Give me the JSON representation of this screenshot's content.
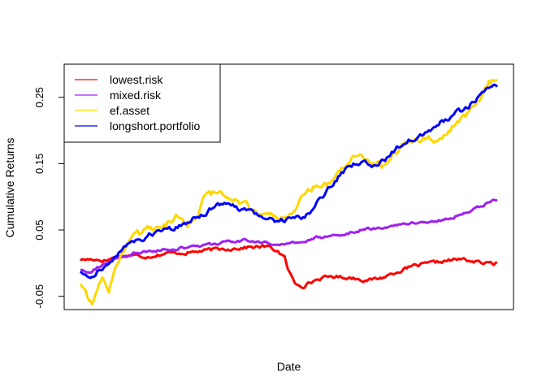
{
  "chart_data": {
    "type": "line",
    "title": "",
    "xlabel": "Date",
    "ylabel": "Cumulative Returns",
    "ylim": [
      -0.07,
      0.3
    ],
    "yticks": [
      -0.05,
      0.05,
      0.15,
      0.25
    ],
    "ytick_labels": [
      "-0.05",
      "0.05",
      "0.15",
      "0.25"
    ],
    "grid": false,
    "legend_position": "top-left",
    "n_points": 250,
    "series": [
      {
        "name": "lowest.risk",
        "color": "#ff0000",
        "keypoints": [
          [
            0,
            0.005
          ],
          [
            8,
            0.006
          ],
          [
            15,
            0.004
          ],
          [
            22,
            0.01
          ],
          [
            30,
            0.012
          ],
          [
            40,
            0.01
          ],
          [
            52,
            0.015
          ],
          [
            65,
            0.016
          ],
          [
            78,
            0.02
          ],
          [
            90,
            0.022
          ],
          [
            100,
            0.024
          ],
          [
            112,
            0.025
          ],
          [
            118,
            0.018
          ],
          [
            122,
            0.008
          ],
          [
            124,
            -0.01
          ],
          [
            128,
            -0.03
          ],
          [
            133,
            -0.034
          ],
          [
            142,
            -0.024
          ],
          [
            150,
            -0.02
          ],
          [
            162,
            -0.022
          ],
          [
            172,
            -0.026
          ],
          [
            180,
            -0.022
          ],
          [
            190,
            -0.012
          ],
          [
            200,
            -0.004
          ],
          [
            210,
            0.0
          ],
          [
            220,
            0.004
          ],
          [
            228,
            0.006
          ],
          [
            236,
            0.002
          ],
          [
            244,
            -0.001
          ],
          [
            249,
            0.0
          ]
        ]
      },
      {
        "name": "mixed.risk",
        "color": "#a020f0",
        "keypoints": [
          [
            0,
            -0.01
          ],
          [
            6,
            -0.012
          ],
          [
            12,
            -0.004
          ],
          [
            22,
            0.006
          ],
          [
            32,
            0.014
          ],
          [
            45,
            0.019
          ],
          [
            58,
            0.022
          ],
          [
            72,
            0.026
          ],
          [
            85,
            0.031
          ],
          [
            98,
            0.034
          ],
          [
            108,
            0.032
          ],
          [
            118,
            0.028
          ],
          [
            130,
            0.03
          ],
          [
            140,
            0.038
          ],
          [
            155,
            0.043
          ],
          [
            168,
            0.05
          ],
          [
            182,
            0.055
          ],
          [
            196,
            0.06
          ],
          [
            210,
            0.063
          ],
          [
            222,
            0.068
          ],
          [
            234,
            0.08
          ],
          [
            244,
            0.092
          ],
          [
            249,
            0.096
          ]
        ]
      },
      {
        "name": "ef.asset",
        "color": "#ffd700",
        "keypoints": [
          [
            0,
            -0.03
          ],
          [
            4,
            -0.052
          ],
          [
            7,
            -0.06
          ],
          [
            10,
            -0.04
          ],
          [
            13,
            -0.02
          ],
          [
            17,
            -0.045
          ],
          [
            20,
            -0.01
          ],
          [
            24,
            0.01
          ],
          [
            28,
            0.03
          ],
          [
            32,
            0.05
          ],
          [
            36,
            0.045
          ],
          [
            40,
            0.055
          ],
          [
            46,
            0.05
          ],
          [
            52,
            0.06
          ],
          [
            58,
            0.07
          ],
          [
            64,
            0.058
          ],
          [
            70,
            0.075
          ],
          [
            74,
            0.1
          ],
          [
            80,
            0.105
          ],
          [
            88,
            0.102
          ],
          [
            94,
            0.094
          ],
          [
            100,
            0.085
          ],
          [
            106,
            0.08
          ],
          [
            112,
            0.072
          ],
          [
            118,
            0.066
          ],
          [
            124,
            0.07
          ],
          [
            130,
            0.09
          ],
          [
            136,
            0.11
          ],
          [
            142,
            0.12
          ],
          [
            150,
            0.122
          ],
          [
            158,
            0.15
          ],
          [
            164,
            0.164
          ],
          [
            170,
            0.158
          ],
          [
            176,
            0.15
          ],
          [
            182,
            0.145
          ],
          [
            188,
            0.168
          ],
          [
            194,
            0.18
          ],
          [
            200,
            0.186
          ],
          [
            206,
            0.19
          ],
          [
            212,
            0.182
          ],
          [
            218,
            0.195
          ],
          [
            224,
            0.21
          ],
          [
            230,
            0.222
          ],
          [
            236,
            0.238
          ],
          [
            240,
            0.248
          ],
          [
            244,
            0.27
          ],
          [
            249,
            0.28
          ]
        ]
      },
      {
        "name": "longshort.portfolio",
        "color": "#0000ff",
        "keypoints": [
          [
            0,
            -0.012
          ],
          [
            4,
            -0.022
          ],
          [
            8,
            -0.016
          ],
          [
            12,
            -0.008
          ],
          [
            18,
            0.0
          ],
          [
            24,
            0.02
          ],
          [
            30,
            0.035
          ],
          [
            36,
            0.03
          ],
          [
            42,
            0.045
          ],
          [
            50,
            0.048
          ],
          [
            56,
            0.053
          ],
          [
            62,
            0.056
          ],
          [
            68,
            0.07
          ],
          [
            74,
            0.075
          ],
          [
            80,
            0.086
          ],
          [
            86,
            0.087
          ],
          [
            92,
            0.084
          ],
          [
            98,
            0.08
          ],
          [
            104,
            0.074
          ],
          [
            110,
            0.068
          ],
          [
            116,
            0.064
          ],
          [
            122,
            0.066
          ],
          [
            128,
            0.07
          ],
          [
            134,
            0.068
          ],
          [
            140,
            0.085
          ],
          [
            146,
            0.105
          ],
          [
            152,
            0.125
          ],
          [
            158,
            0.14
          ],
          [
            164,
            0.15
          ],
          [
            170,
            0.15
          ],
          [
            176,
            0.147
          ],
          [
            182,
            0.155
          ],
          [
            188,
            0.172
          ],
          [
            194,
            0.185
          ],
          [
            200,
            0.19
          ],
          [
            206,
            0.197
          ],
          [
            212,
            0.208
          ],
          [
            218,
            0.216
          ],
          [
            224,
            0.226
          ],
          [
            230,
            0.232
          ],
          [
            236,
            0.246
          ],
          [
            242,
            0.258
          ],
          [
            249,
            0.268
          ]
        ]
      }
    ]
  }
}
